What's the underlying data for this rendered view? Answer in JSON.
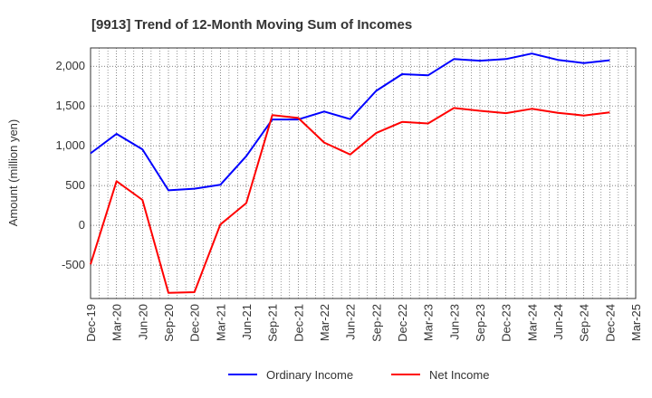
{
  "chart_data": {
    "type": "line",
    "title": "[9913]  Trend of 12-Month Moving Sum of Incomes",
    "xlabel": "",
    "ylabel": "Amount (million yen)",
    "categories": [
      "Dec-19",
      "Mar-20",
      "Jun-20",
      "Sep-20",
      "Dec-20",
      "Mar-21",
      "Jun-21",
      "Sep-21",
      "Dec-21",
      "Mar-22",
      "Jun-22",
      "Sep-22",
      "Dec-22",
      "Mar-23",
      "Jun-23",
      "Sep-23",
      "Dec-23",
      "Mar-24",
      "Jun-24",
      "Sep-24",
      "Dec-24",
      "Mar-25"
    ],
    "ylim": [
      -920,
      2230
    ],
    "yticks": [
      -500,
      0,
      500,
      1000,
      1500,
      2000
    ],
    "ytick_labels": [
      "-500",
      "0",
      "500",
      "1,000",
      "1,500",
      "2,000"
    ],
    "grid": true,
    "legend_position": "bottom",
    "series": [
      {
        "name": "Ordinary Income",
        "color": "#0000ff",
        "values": [
          905,
          1150,
          955,
          440,
          460,
          510,
          870,
          1330,
          1330,
          1430,
          1335,
          1690,
          1900,
          1885,
          2090,
          2070,
          2090,
          2160,
          2080,
          2040,
          2075,
          null
        ]
      },
      {
        "name": "Net Income",
        "color": "#ff0000",
        "values": [
          -490,
          555,
          320,
          -850,
          -840,
          10,
          280,
          1385,
          1350,
          1040,
          890,
          1160,
          1300,
          1280,
          1475,
          1440,
          1410,
          1465,
          1415,
          1380,
          1420,
          null
        ]
      }
    ]
  }
}
